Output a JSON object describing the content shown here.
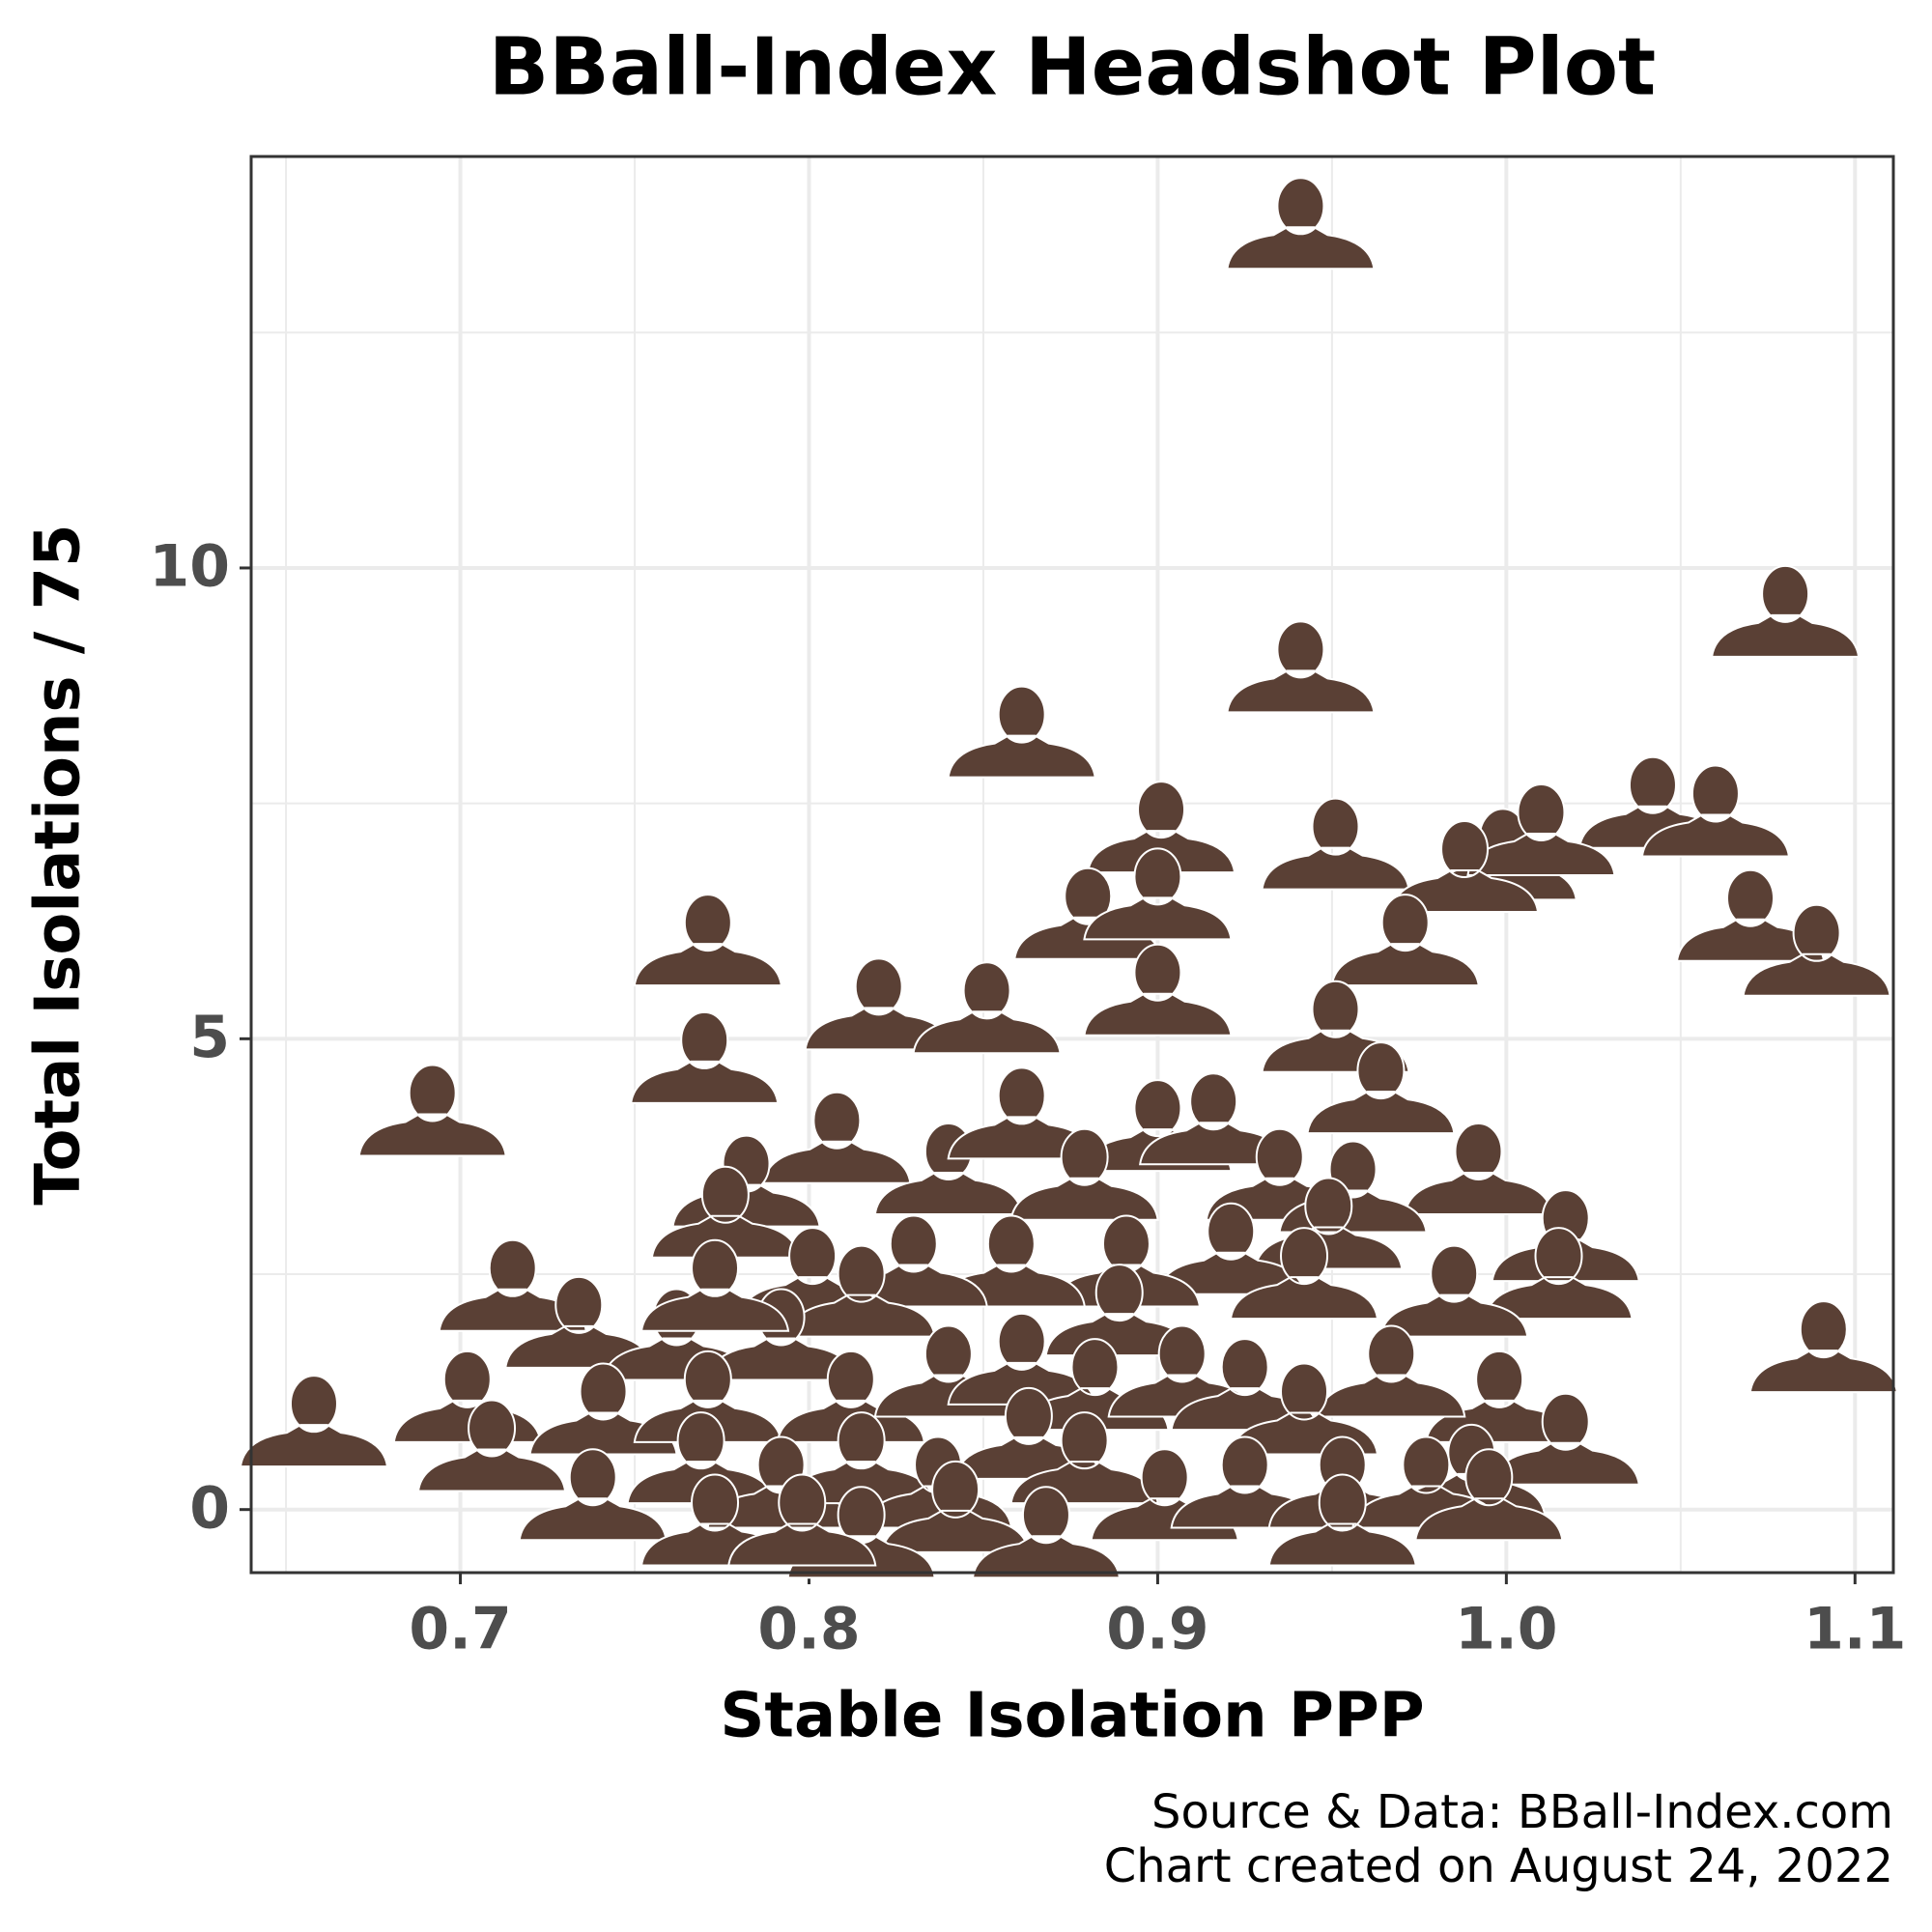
{
  "chart_data": {
    "type": "scatter",
    "title": "BBall-Index Headshot Plot",
    "x_label": "Stable Isolation PPP",
    "y_label": "Total Isolations / 75",
    "source": [
      "Source & Data: BBall-Index.com",
      "Chart created on August 24, 2022"
    ],
    "xlim": [
      0.64,
      1.111
    ],
    "ylim": [
      -0.67,
      14.37
    ],
    "xticks": [
      0.7,
      0.8,
      0.9,
      {
        "value": 1.0,
        "label": "1.0"
      },
      1.1
    ],
    "yticks": [
      0,
      5,
      10
    ],
    "x_minor_grid": [
      0.65,
      0.75,
      0.85,
      0.95,
      1.05
    ],
    "y_minor_grid": [
      2.5,
      7.5,
      12.5
    ],
    "grid": true,
    "color": "#5a4035",
    "x": [
      0.941,
      1.08,
      0.941,
      0.861,
      1.042,
      1.06,
      0.901,
      0.951,
      0.999,
      1.01,
      0.988,
      0.88,
      0.9,
      1.07,
      1.089,
      0.771,
      0.971,
      0.82,
      0.851,
      0.9,
      0.77,
      0.951,
      0.692,
      0.808,
      0.782,
      0.964,
      0.9,
      0.916,
      0.992,
      0.776,
      0.84,
      0.861,
      0.879,
      0.935,
      0.956,
      0.949,
      1.017,
      0.715,
      1.015,
      0.921,
      0.891,
      0.858,
      0.83,
      0.801,
      0.815,
      1.091,
      0.734,
      0.762,
      0.792,
      0.773,
      0.985,
      0.942,
      0.889,
      0.998,
      0.967,
      0.702,
      0.658,
      0.741,
      0.771,
      0.812,
      0.84,
      0.861,
      0.882,
      0.907,
      0.925,
      0.942,
      1.017,
      0.99,
      0.709,
      0.738,
      0.769,
      0.792,
      0.815,
      0.837,
      0.863,
      0.879,
      0.902,
      0.925,
      0.953,
      0.977,
      0.842,
      0.773,
      0.815,
      0.868,
      0.953,
      0.798,
      0.995
    ],
    "values": [
      13.7,
      9.58,
      8.99,
      8.3,
      7.55,
      7.46,
      7.29,
      7.11,
      7.0,
      7.26,
      6.87,
      6.37,
      6.58,
      6.35,
      5.98,
      6.09,
      6.09,
      5.41,
      5.37,
      5.56,
      4.84,
      5.17,
      4.28,
      3.99,
      3.53,
      4.52,
      4.12,
      4.19,
      3.66,
      3.2,
      3.66,
      4.25,
      3.6,
      3.6,
      3.47,
      3.08,
      2.95,
      2.42,
      2.55,
      2.81,
      2.68,
      2.68,
      2.68,
      2.55,
      2.36,
      1.77,
      2.03,
      1.9,
      1.9,
      2.42,
      2.36,
      2.55,
      2.16,
      1.24,
      1.51,
      1.24,
      0.98,
      1.11,
      1.24,
      1.24,
      1.51,
      1.64,
      1.37,
      1.51,
      1.37,
      1.11,
      0.79,
      0.46,
      0.72,
      0.2,
      0.59,
      0.33,
      0.59,
      0.33,
      0.85,
      0.59,
      0.2,
      0.33,
      0.33,
      0.33,
      0.07,
      -0.07,
      -0.2,
      -0.2,
      -0.07,
      -0.07,
      0.2
    ]
  }
}
